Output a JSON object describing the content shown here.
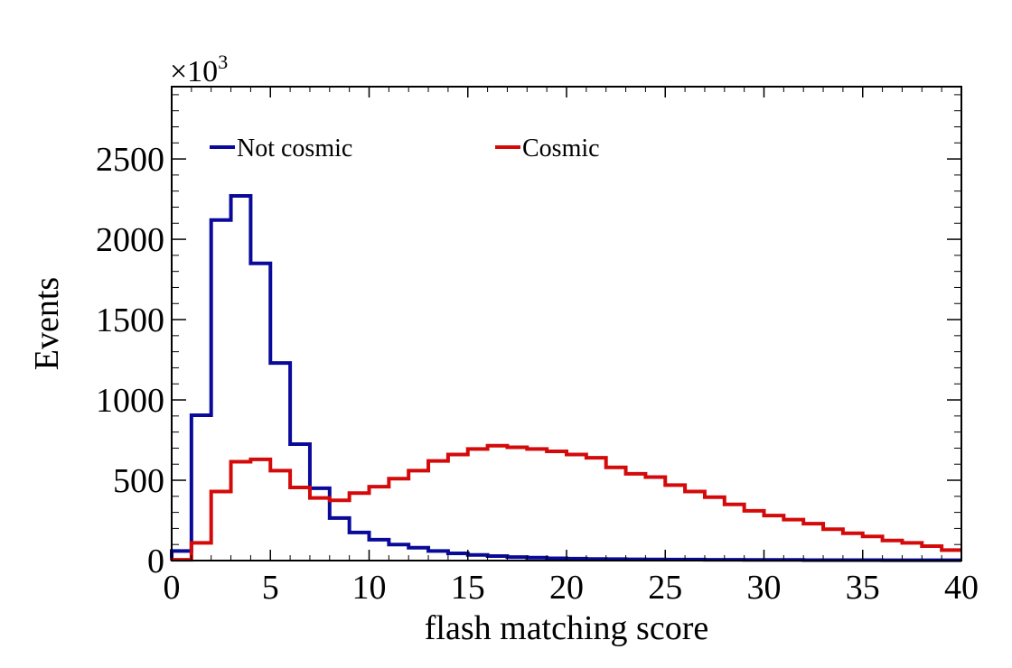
{
  "chart_data": {
    "type": "line",
    "step_histogram": true,
    "title": "",
    "xlabel": "flash matching score",
    "ylabel": "Events",
    "y_multiplier": {
      "base": "×10",
      "exponent": "3"
    },
    "xlim": [
      0,
      40
    ],
    "ylim": [
      0,
      2950
    ],
    "x_ticks": [
      0,
      5,
      10,
      15,
      20,
      25,
      30,
      35,
      40
    ],
    "y_ticks": [
      0,
      500,
      1000,
      1500,
      2000,
      2500
    ],
    "grid": false,
    "legend_position": "top",
    "bin_edges": [
      0,
      1,
      2,
      3,
      4,
      5,
      6,
      7,
      8,
      9,
      10,
      11,
      12,
      13,
      14,
      15,
      16,
      17,
      18,
      19,
      20,
      21,
      22,
      23,
      24,
      25,
      26,
      27,
      28,
      29,
      30,
      31,
      32,
      33,
      34,
      35,
      36,
      37,
      38,
      39,
      40
    ],
    "series": [
      {
        "name": "Not cosmic",
        "color": "#0a0a9a",
        "values": [
          60,
          905,
          2120,
          2270,
          1850,
          1230,
          725,
          450,
          265,
          175,
          130,
          100,
          80,
          60,
          45,
          35,
          28,
          22,
          18,
          14,
          12,
          10,
          9,
          8,
          7,
          6,
          6,
          5,
          5,
          4,
          4,
          4,
          3,
          3,
          3,
          3,
          2,
          2,
          2,
          2
        ]
      },
      {
        "name": "Cosmic",
        "color": "#d40a0a",
        "values": [
          5,
          110,
          430,
          615,
          630,
          560,
          455,
          390,
          375,
          420,
          460,
          510,
          560,
          620,
          660,
          695,
          715,
          705,
          695,
          680,
          660,
          640,
          580,
          540,
          520,
          470,
          430,
          395,
          350,
          310,
          280,
          255,
          230,
          195,
          170,
          150,
          125,
          110,
          90,
          65
        ]
      }
    ]
  }
}
